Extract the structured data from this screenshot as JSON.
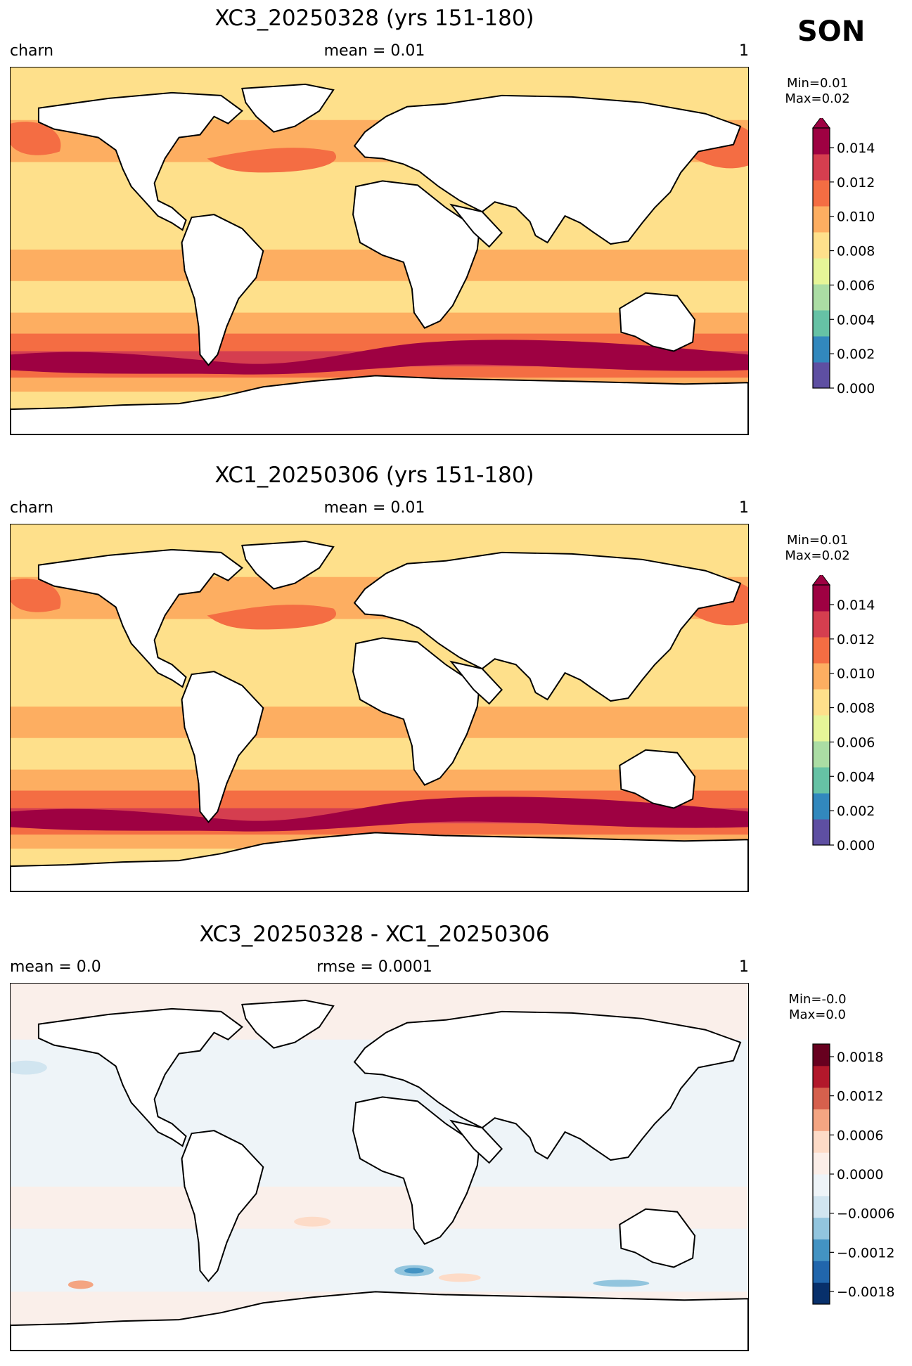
{
  "season": "SON",
  "panels": [
    {
      "title": "XC3_20250328 (yrs 151-180)",
      "left_label": "charn",
      "center_label": "mean = 0.01",
      "right_label": "1",
      "min_label": "Min=0.01",
      "max_label": "Max=0.02",
      "colorbar": {
        "ticks": [
          "0.014",
          "0.012",
          "0.010",
          "0.008",
          "0.006",
          "0.004",
          "0.002",
          "0.000"
        ],
        "colors": [
          "#5e4fa2",
          "#3288bd",
          "#66c2a5",
          "#abdda4",
          "#e6f598",
          "#fee08b",
          "#fdae61",
          "#f46d43",
          "#d53e4f",
          "#9e0142"
        ],
        "extend": "max"
      },
      "field": "absolute"
    },
    {
      "title": "XC1_20250306 (yrs 151-180)",
      "left_label": "charn",
      "center_label": "mean = 0.01",
      "right_label": "1",
      "min_label": "Min=0.01",
      "max_label": "Max=0.02",
      "colorbar": {
        "ticks": [
          "0.014",
          "0.012",
          "0.010",
          "0.008",
          "0.006",
          "0.004",
          "0.002",
          "0.000"
        ],
        "colors": [
          "#5e4fa2",
          "#3288bd",
          "#66c2a5",
          "#abdda4",
          "#e6f598",
          "#fee08b",
          "#fdae61",
          "#f46d43",
          "#d53e4f",
          "#9e0142"
        ],
        "extend": "max"
      },
      "field": "absolute"
    },
    {
      "title": "XC3_20250328 - XC1_20250306",
      "left_label": "mean = 0.0",
      "center_label": "rmse = 0.0001",
      "right_label": "1",
      "min_label": "Min=-0.0",
      "max_label": "Max=0.0",
      "colorbar": {
        "ticks": [
          "0.0018",
          "0.0012",
          "0.0006",
          "0.0000",
          "−0.0006",
          "−0.0012",
          "−0.0018"
        ],
        "colors": [
          "#08306b",
          "#2166ac",
          "#4393c3",
          "#92c5de",
          "#d1e5f0",
          "#eef4f8",
          "#fbeee8",
          "#fddbc7",
          "#f4a582",
          "#d6604d",
          "#b2182b",
          "#67001f"
        ],
        "extend": "none"
      },
      "field": "difference"
    }
  ]
}
